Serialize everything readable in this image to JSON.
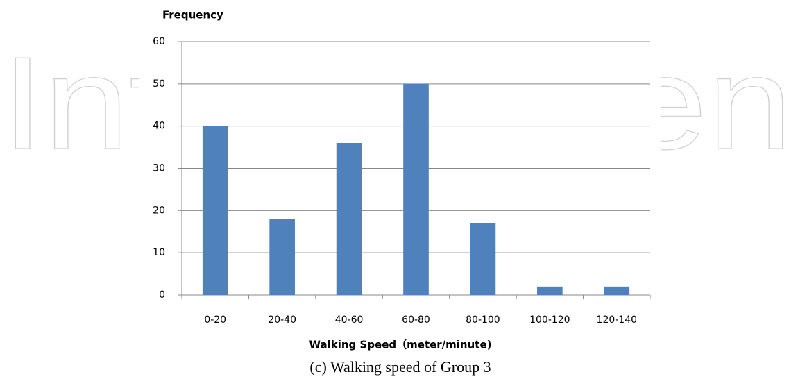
{
  "watermark": "IntechOpen",
  "caption": "(c) Walking speed of Group 3",
  "chart_data": {
    "type": "bar",
    "y_label": "Frequency",
    "x_label": "Walking Speed（meter/minute)",
    "categories": [
      "0-20",
      "20-40",
      "40-60",
      "60-80",
      "80-100",
      "100-120",
      "120-140"
    ],
    "values": [
      40,
      18,
      36,
      50,
      17,
      2,
      2
    ],
    "color": "#4f81bd",
    "ylim": [
      0,
      60
    ],
    "yticks": [
      0,
      10,
      20,
      30,
      40,
      50,
      60
    ],
    "grid": true
  }
}
